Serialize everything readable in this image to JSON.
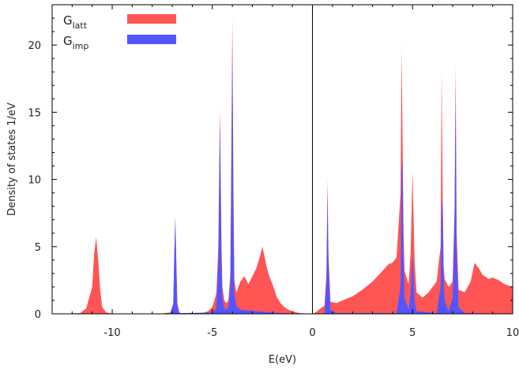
{
  "chart_data": {
    "type": "area",
    "xlabel": "E(eV)",
    "ylabel": "Density of states 1/eV",
    "xlim": [
      -13,
      10
    ],
    "ylim": [
      0,
      23
    ],
    "xticks": [
      -10,
      -5,
      0,
      5,
      10
    ],
    "yticks": [
      0,
      5,
      10,
      15,
      20
    ],
    "zero_line": 0,
    "legend_position": "top-left",
    "series": [
      {
        "name": "G",
        "name_sub": "latt",
        "color": "#ff5555",
        "x": [
          -13.0,
          -11.6,
          -11.3,
          -11.0,
          -10.9,
          -10.8,
          -10.7,
          -10.6,
          -10.5,
          -10.3,
          -10.0,
          -9.5,
          -9.0,
          -8.5,
          -8.0,
          -7.5,
          -7.1,
          -6.95,
          -6.9,
          -6.85,
          -6.8,
          -6.75,
          -6.65,
          -6.5,
          -6.0,
          -5.5,
          -5.2,
          -5.0,
          -4.8,
          -4.7,
          -4.62,
          -4.55,
          -4.5,
          -4.4,
          -4.3,
          -4.2,
          -4.1,
          -4.05,
          -4.0,
          -3.95,
          -3.9,
          -3.8,
          -3.6,
          -3.4,
          -3.2,
          -3.0,
          -2.8,
          -2.6,
          -2.5,
          -2.4,
          -2.3,
          -2.2,
          -2.1,
          -2.0,
          -1.9,
          -1.8,
          -1.6,
          -1.4,
          -1.2,
          -1.0,
          -0.8,
          -0.6,
          -0.4,
          -0.2,
          0.0,
          0.2,
          0.4,
          0.6,
          0.7,
          0.75,
          0.8,
          0.9,
          1.2,
          1.5,
          2.0,
          2.5,
          3.0,
          3.5,
          3.8,
          4.0,
          4.2,
          4.4,
          4.45,
          4.5,
          4.55,
          4.6,
          4.8,
          4.9,
          5.0,
          5.1,
          5.2,
          5.5,
          5.8,
          6.0,
          6.2,
          6.4,
          6.45,
          6.5,
          6.55,
          6.6,
          6.8,
          7.0,
          7.1,
          7.15,
          7.2,
          7.3,
          7.6,
          7.9,
          8.1,
          8.3,
          8.5,
          8.8,
          9.0,
          9.3,
          9.6,
          10.0
        ],
        "y": [
          0.0,
          0.05,
          0.4,
          2.0,
          4.5,
          5.7,
          4.0,
          1.8,
          0.5,
          0.1,
          0.03,
          0.03,
          0.03,
          0.03,
          0.03,
          0.03,
          0.1,
          0.8,
          4.5,
          7.3,
          4.0,
          0.8,
          0.1,
          0.03,
          0.03,
          0.05,
          0.2,
          0.5,
          1.5,
          5.0,
          15.3,
          6.0,
          2.0,
          1.0,
          0.8,
          1.0,
          3.0,
          12.0,
          22.0,
          10.0,
          2.5,
          1.6,
          2.4,
          2.8,
          2.2,
          2.8,
          3.4,
          4.4,
          5.0,
          4.3,
          3.6,
          3.0,
          2.6,
          2.2,
          1.8,
          1.3,
          0.8,
          0.5,
          0.3,
          0.2,
          0.1,
          0.05,
          0.02,
          0.01,
          0.0,
          0.15,
          0.4,
          0.6,
          3.0,
          10.0,
          4.5,
          0.9,
          0.8,
          1.0,
          1.3,
          1.8,
          2.4,
          3.2,
          3.7,
          3.8,
          4.2,
          9.0,
          19.8,
          13.0,
          6.0,
          3.2,
          2.2,
          4.5,
          10.6,
          4.0,
          1.6,
          1.2,
          1.6,
          2.0,
          2.4,
          5.0,
          18.0,
          9.0,
          3.6,
          2.6,
          2.0,
          2.4,
          8.0,
          18.5,
          6.0,
          1.8,
          1.6,
          2.4,
          3.8,
          3.4,
          2.9,
          2.6,
          2.7,
          2.5,
          2.2,
          2.0
        ]
      },
      {
        "name": "G",
        "name_sub": "imp",
        "color": "#5555ff",
        "x": [
          -13.0,
          -7.1,
          -6.95,
          -6.9,
          -6.85,
          -6.8,
          -6.75,
          -6.65,
          -5.0,
          -4.8,
          -4.7,
          -4.62,
          -4.55,
          -4.5,
          -4.4,
          -4.3,
          -4.2,
          -4.1,
          -4.05,
          -4.0,
          -3.95,
          -3.9,
          -3.8,
          -3.6,
          -3.2,
          -2.8,
          -2.4,
          -2.0,
          -1.5,
          -1.0,
          0.0,
          0.6,
          0.7,
          0.75,
          0.8,
          0.9,
          1.2,
          4.2,
          4.4,
          4.45,
          4.5,
          4.55,
          4.6,
          4.8,
          4.9,
          5.0,
          5.1,
          5.2,
          6.2,
          6.4,
          6.45,
          6.5,
          6.55,
          6.6,
          6.8,
          7.0,
          7.1,
          7.15,
          7.2,
          7.3,
          7.6,
          10.0
        ],
        "y": [
          0.0,
          0.02,
          0.7,
          4.2,
          7.0,
          3.8,
          0.7,
          0.05,
          0.1,
          0.4,
          4.0,
          14.5,
          4.8,
          1.2,
          0.4,
          0.3,
          0.5,
          2.0,
          10.5,
          20.5,
          8.0,
          1.5,
          0.6,
          0.3,
          0.25,
          0.2,
          0.15,
          0.1,
          0.05,
          0.02,
          0.0,
          0.05,
          2.5,
          9.0,
          3.8,
          0.3,
          0.05,
          0.05,
          2.0,
          10.5,
          11.5,
          4.0,
          1.2,
          0.3,
          1.5,
          4.5,
          1.0,
          0.2,
          0.05,
          2.0,
          8.0,
          8.5,
          3.0,
          1.0,
          0.2,
          1.2,
          7.0,
          17.0,
          4.5,
          0.5,
          0.05,
          0.0
        ]
      }
    ]
  }
}
